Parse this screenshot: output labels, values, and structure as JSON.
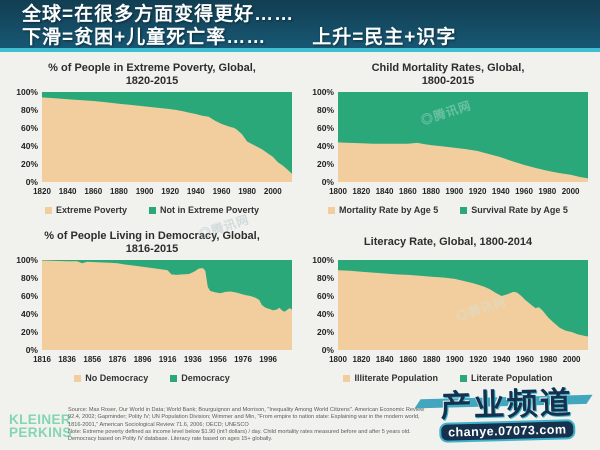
{
  "header": {
    "line1": "全球=在很多方面变得更好……",
    "line2_left": "下滑=贫困+儿童死亡率……",
    "line2_right": "上升=民主+识字"
  },
  "colors": {
    "header_bg": "#175773",
    "divider_teal": "#41bfd2",
    "content_bg": "#f1f1ee",
    "tan": "#F2CE9E",
    "green": "#2BA87A",
    "title_text": "#2d2d2d",
    "logo_green": "#84d6b2",
    "watermark_navy": "#15314e",
    "watermark_teal": "#3fb3c9"
  },
  "chart_data": [
    {
      "type": "area",
      "title_lines": [
        "% of People in Extreme Poverty, Global,",
        "1820-2015"
      ],
      "x_domain": [
        1820,
        2015
      ],
      "ylim": [
        0,
        100
      ],
      "y_ticks": [
        "100%",
        "80%",
        "60%",
        "40%",
        "20%",
        "0%"
      ],
      "x_ticks": [
        1820,
        1840,
        1860,
        1880,
        1900,
        1920,
        1940,
        1960,
        1980,
        2000
      ],
      "grid": false,
      "legend_position": "bottom",
      "series": [
        {
          "name": "Extreme Poverty",
          "color": "#F2CE9E",
          "stack": "bottom",
          "points": [
            [
              1820,
              94
            ],
            [
              1830,
              93
            ],
            [
              1840,
              92
            ],
            [
              1850,
              91
            ],
            [
              1860,
              90
            ],
            [
              1870,
              88.5
            ],
            [
              1880,
              87
            ],
            [
              1890,
              85.5
            ],
            [
              1900,
              84
            ],
            [
              1910,
              82.5
            ],
            [
              1920,
              81
            ],
            [
              1925,
              80
            ],
            [
              1930,
              78.5
            ],
            [
              1935,
              77
            ],
            [
              1940,
              75.5
            ],
            [
              1945,
              73.5
            ],
            [
              1950,
              72.5
            ],
            [
              1955,
              68
            ],
            [
              1960,
              64.5
            ],
            [
              1963,
              63
            ],
            [
              1966,
              61.5
            ],
            [
              1970,
              60
            ],
            [
              1972,
              58
            ],
            [
              1976,
              53
            ],
            [
              1980,
              45
            ],
            [
              1984,
              42
            ],
            [
              1988,
              39
            ],
            [
              1992,
              36
            ],
            [
              1996,
              32
            ],
            [
              2000,
              28
            ],
            [
              2004,
              22
            ],
            [
              2008,
              18
            ],
            [
              2012,
              13
            ],
            [
              2015,
              9
            ]
          ]
        },
        {
          "name": "Not in Extreme Poverty",
          "color": "#2BA87A",
          "stack": "remainder_to_100"
        }
      ]
    },
    {
      "type": "area",
      "title_lines": [
        "Child Mortality Rates, Global,",
        "1800-2015"
      ],
      "x_domain": [
        1800,
        2015
      ],
      "ylim": [
        0,
        100
      ],
      "y_ticks": [
        "100%",
        "80%",
        "60%",
        "40%",
        "20%",
        "0%"
      ],
      "x_ticks": [
        1800,
        1820,
        1840,
        1860,
        1880,
        1900,
        1920,
        1940,
        1960,
        1980,
        2000
      ],
      "grid": false,
      "legend_position": "bottom",
      "series": [
        {
          "name": "Mortality Rate by Age 5",
          "color": "#F2CE9E",
          "stack": "bottom",
          "points": [
            [
              1800,
              44
            ],
            [
              1810,
              43.5
            ],
            [
              1820,
              43
            ],
            [
              1830,
              42.5
            ],
            [
              1840,
              42.5
            ],
            [
              1850,
              42.5
            ],
            [
              1860,
              42.5
            ],
            [
              1868,
              43.5
            ],
            [
              1875,
              42
            ],
            [
              1880,
              41
            ],
            [
              1890,
              39.5
            ],
            [
              1900,
              38
            ],
            [
              1910,
              36.5
            ],
            [
              1920,
              34.5
            ],
            [
              1930,
              31
            ],
            [
              1940,
              27.5
            ],
            [
              1950,
              23
            ],
            [
              1960,
              19
            ],
            [
              1970,
              15.5
            ],
            [
              1980,
              12.5
            ],
            [
              1990,
              10
            ],
            [
              2000,
              8
            ],
            [
              2008,
              5.5
            ],
            [
              2015,
              4
            ]
          ]
        },
        {
          "name": "Survival Rate by Age 5",
          "color": "#2BA87A",
          "stack": "remainder_to_100"
        }
      ]
    },
    {
      "type": "area",
      "title_lines": [
        "% of People Living in Democracy, Global,",
        "1816-2015"
      ],
      "x_domain": [
        1816,
        2015
      ],
      "ylim": [
        0,
        100
      ],
      "y_ticks": [
        "100%",
        "80%",
        "60%",
        "40%",
        "20%",
        "0%"
      ],
      "x_ticks": [
        1816,
        1836,
        1856,
        1876,
        1896,
        1916,
        1936,
        1956,
        1976,
        1996
      ],
      "grid": false,
      "legend_position": "bottom",
      "series": [
        {
          "name": "No Democracy",
          "color": "#F2CE9E",
          "stack": "bottom",
          "points": [
            [
              1816,
              99.5
            ],
            [
              1826,
              99
            ],
            [
              1836,
              98.5
            ],
            [
              1844,
              98.5
            ],
            [
              1848,
              96.5
            ],
            [
              1852,
              98
            ],
            [
              1860,
              97.5
            ],
            [
              1870,
              97
            ],
            [
              1876,
              96.5
            ],
            [
              1882,
              95
            ],
            [
              1890,
              93.5
            ],
            [
              1896,
              92.5
            ],
            [
              1904,
              91
            ],
            [
              1912,
              89.5
            ],
            [
              1916,
              88.5
            ],
            [
              1919,
              84
            ],
            [
              1923,
              83.5
            ],
            [
              1928,
              84
            ],
            [
              1933,
              84.5
            ],
            [
              1937,
              87
            ],
            [
              1941,
              90.5
            ],
            [
              1944,
              91
            ],
            [
              1946,
              88
            ],
            [
              1948,
              70
            ],
            [
              1950,
              65.5
            ],
            [
              1954,
              64
            ],
            [
              1958,
              63
            ],
            [
              1962,
              64.5
            ],
            [
              1966,
              65
            ],
            [
              1970,
              64
            ],
            [
              1974,
              62.5
            ],
            [
              1978,
              61
            ],
            [
              1982,
              60
            ],
            [
              1986,
              58
            ],
            [
              1989,
              55.5
            ],
            [
              1991,
              50
            ],
            [
              1994,
              47
            ],
            [
              1997,
              45.5
            ],
            [
              2000,
              44
            ],
            [
              2003,
              45
            ],
            [
              2005,
              47
            ],
            [
              2007,
              44
            ],
            [
              2009,
              42.5
            ],
            [
              2011,
              44.5
            ],
            [
              2013,
              46.5
            ],
            [
              2015,
              45
            ]
          ]
        },
        {
          "name": "Democracy",
          "color": "#2BA87A",
          "stack": "remainder_to_100"
        }
      ]
    },
    {
      "type": "area",
      "title_lines": [
        "Literacy Rate, Global, 1800-2014"
      ],
      "x_domain": [
        1800,
        2014
      ],
      "ylim": [
        0,
        100
      ],
      "y_ticks": [
        "100%",
        "80%",
        "60%",
        "40%",
        "20%",
        "0%"
      ],
      "x_ticks": [
        1800,
        1820,
        1840,
        1860,
        1880,
        1900,
        1920,
        1940,
        1960,
        1980,
        2000
      ],
      "grid": false,
      "legend_position": "bottom",
      "series": [
        {
          "name": "Illiterate Population",
          "color": "#F2CE9E",
          "stack": "bottom",
          "points": [
            [
              1800,
              88.5
            ],
            [
              1810,
              88
            ],
            [
              1820,
              87
            ],
            [
              1830,
              86
            ],
            [
              1840,
              85
            ],
            [
              1850,
              84
            ],
            [
              1860,
              83.5
            ],
            [
              1870,
              82.5
            ],
            [
              1880,
              81.5
            ],
            [
              1890,
              80.5
            ],
            [
              1900,
              79
            ],
            [
              1905,
              77.5
            ],
            [
              1910,
              76
            ],
            [
              1915,
              74.5
            ],
            [
              1920,
              72.5
            ],
            [
              1925,
              70.5
            ],
            [
              1930,
              67.5
            ],
            [
              1935,
              63.5
            ],
            [
              1940,
              60
            ],
            [
              1945,
              62
            ],
            [
              1950,
              64.5
            ],
            [
              1953,
              64
            ],
            [
              1957,
              60
            ],
            [
              1960,
              56
            ],
            [
              1965,
              50.5
            ],
            [
              1969,
              46.5
            ],
            [
              1972,
              47.5
            ],
            [
              1975,
              44
            ],
            [
              1980,
              36
            ],
            [
              1985,
              30
            ],
            [
              1990,
              24.5
            ],
            [
              1995,
              21.5
            ],
            [
              2000,
              20
            ],
            [
              2005,
              17.5
            ],
            [
              2010,
              16
            ],
            [
              2014,
              15
            ]
          ]
        },
        {
          "name": "Literate Population",
          "color": "#2BA87A",
          "stack": "remainder_to_100"
        }
      ]
    }
  ],
  "footer": {
    "logo_line1": "KLEINER",
    "logo_line2": "PERKINS",
    "source_lines": [
      "Source: Max Roser, Our World in Data; World Bank; Bourguignon and Morrison, \"Inequality Among World Citizens\". American Economic Review",
      "92.4, 2002; Gapminder; Polity IV; UN Population Division; Wimmer and Min, \"From empire to nation state: Explaining war in the modern world,",
      "1816-2001,\" American Sociological Review 71.6, 2006; OECD; UNESCO",
      "Note: Extreme poverty defined as income level below $1.90 (int'l dollars) / day. Child mortality rates measured before and after 5 years old.",
      "Democracy based on Polity IV database. Literacy rate based on ages 15+ globally."
    ]
  },
  "watermarks": {
    "tencent": "◎腾讯网",
    "channel_big": "产业频道",
    "channel_url": "chanye.07073.com"
  }
}
